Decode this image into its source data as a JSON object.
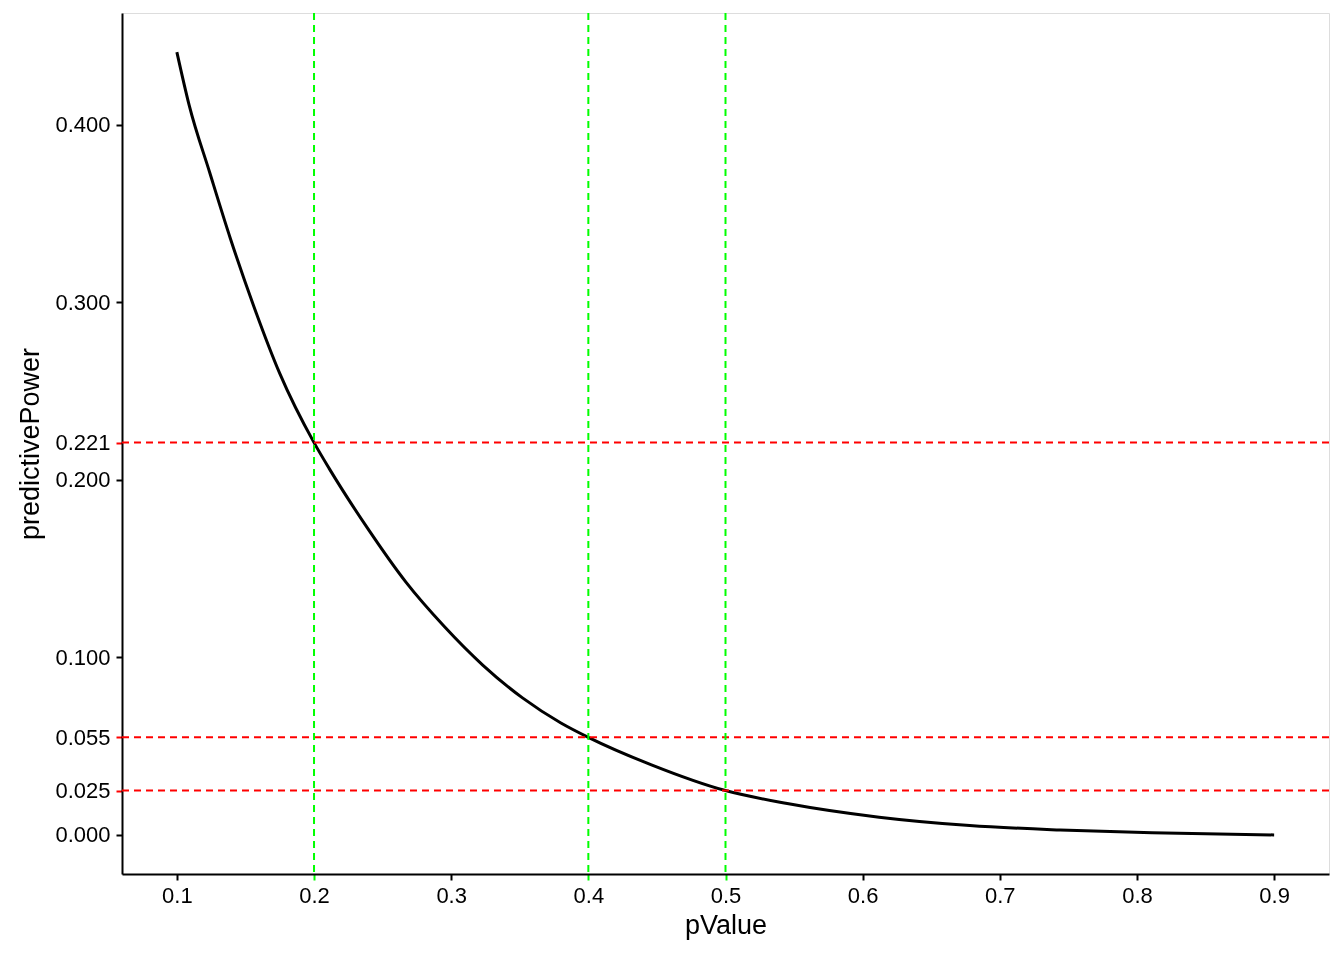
{
  "chart_data": {
    "type": "line",
    "xlabel": "pValue",
    "ylabel": "predictivePower",
    "x": [
      0.1,
      0.109,
      0.124,
      0.139,
      0.156,
      0.175,
      0.2,
      0.211,
      0.239,
      0.267,
      0.295,
      0.323,
      0.352,
      0.38,
      0.4,
      0.446,
      0.5,
      0.545,
      0.612,
      0.678,
      0.744,
      0.811,
      0.9
    ],
    "series": [
      {
        "color": "#000000",
        "values": [
          0.441,
          0.411,
          0.373,
          0.336,
          0.298,
          0.26,
          0.221,
          0.2065,
          0.1728,
          0.1424,
          0.1174,
          0.0957,
          0.0772,
          0.0631,
          0.055,
          0.0395,
          0.025,
          0.0177,
          0.01,
          0.0053,
          0.0028,
          0.0012,
          0.0
        ]
      }
    ],
    "xlim": [
      0.06,
      0.94
    ],
    "ylim": [
      -0.022,
      0.463
    ],
    "xticks": [
      0.1,
      0.2,
      0.3,
      0.4,
      0.5,
      0.6,
      0.7,
      0.8,
      0.9
    ],
    "yticks": [
      {
        "value": 0,
        "label": "0.000"
      },
      0.025,
      0.055,
      {
        "value": 0.1,
        "label": "0.100"
      },
      {
        "value": 0.2,
        "label": "0.200"
      },
      0.221,
      {
        "value": 0.3,
        "label": "0.300"
      },
      {
        "value": 0.4,
        "label": "0.400"
      }
    ],
    "ref_lines": [
      {
        "axis": "y",
        "value": 0.221,
        "color": "#ff0000",
        "line_style": "dashed"
      },
      {
        "axis": "y",
        "value": 0.055,
        "color": "#ff0000",
        "line_style": "dashed"
      },
      {
        "axis": "y",
        "value": 0.025,
        "color": "#ff0000",
        "line_style": "dashed"
      },
      {
        "axis": "x",
        "value": 0.2,
        "color": "#00ff00",
        "line_style": "dashed"
      },
      {
        "axis": "x",
        "value": 0.4,
        "color": "#00ff00",
        "line_style": "dashed"
      },
      {
        "axis": "x",
        "value": 0.5,
        "color": "#00ff00",
        "line_style": "dashed"
      }
    ],
    "grid": false,
    "line_style": "solid"
  }
}
